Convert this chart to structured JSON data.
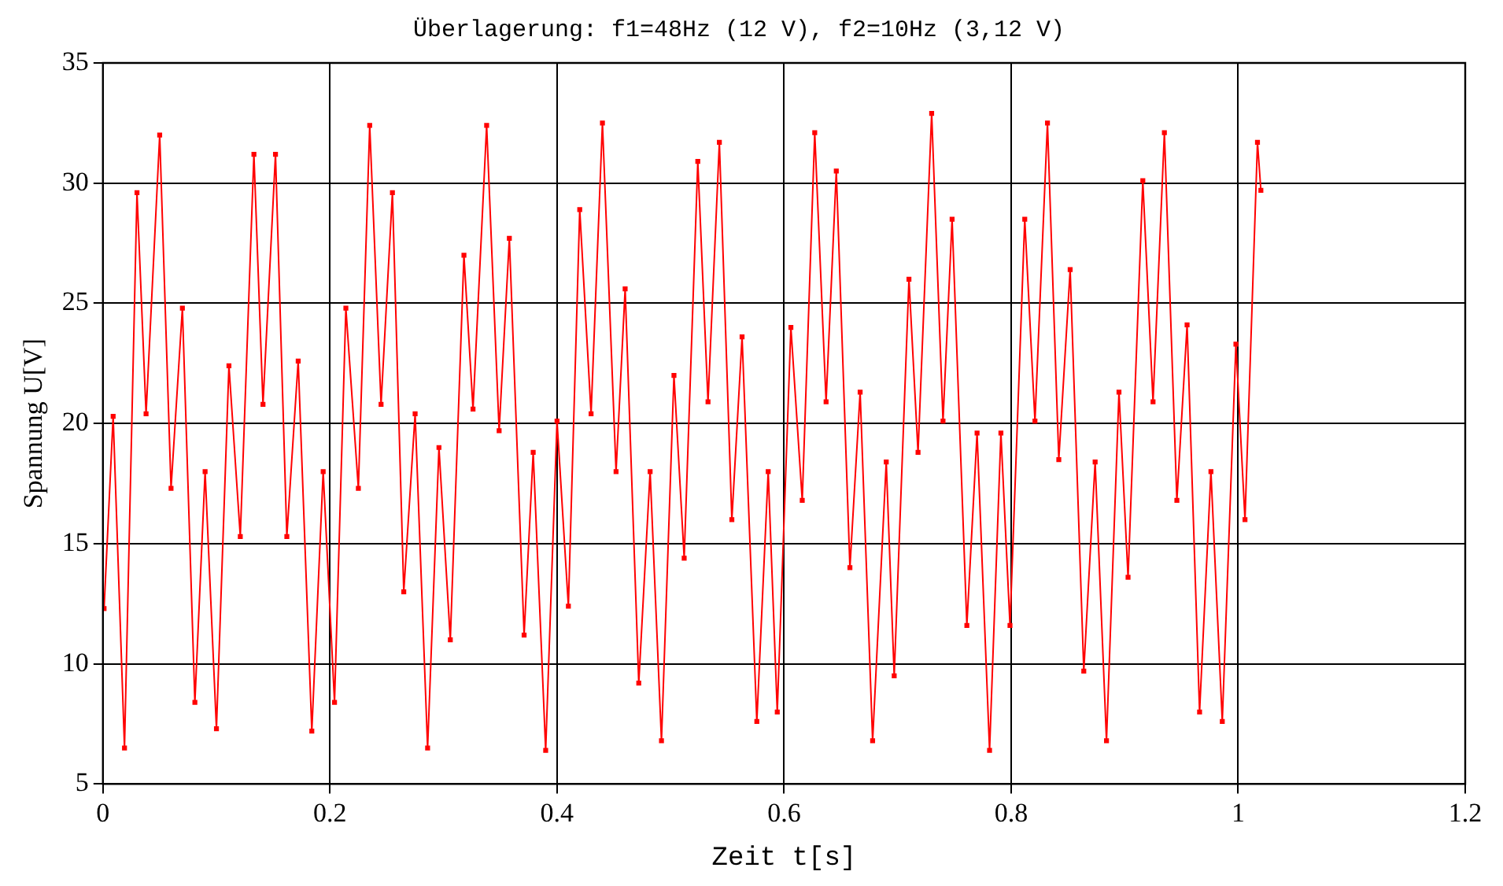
{
  "chart_data": {
    "type": "line",
    "title": "Überlagerung: f1=48Hz (12 V), f2=10Hz (3,12 V)",
    "xlabel": "Zeit t[s]",
    "ylabel": "Spannung U[V]",
    "x": [
      0.001,
      0.009,
      0.019,
      0.03,
      0.038,
      0.05,
      0.06,
      0.07,
      0.081,
      0.09,
      0.1,
      0.111,
      0.121,
      0.133,
      0.141,
      0.152,
      0.162,
      0.172,
      0.184,
      0.194,
      0.204,
      0.214,
      0.225,
      0.235,
      0.245,
      0.255,
      0.265,
      0.275,
      0.286,
      0.296,
      0.306,
      0.318,
      0.326,
      0.338,
      0.349,
      0.358,
      0.371,
      0.379,
      0.39,
      0.4,
      0.41,
      0.42,
      0.43,
      0.44,
      0.452,
      0.46,
      0.472,
      0.482,
      0.492,
      0.503,
      0.512,
      0.524,
      0.533,
      0.543,
      0.554,
      0.563,
      0.576,
      0.586,
      0.594,
      0.606,
      0.616,
      0.627,
      0.637,
      0.646,
      0.658,
      0.667,
      0.678,
      0.69,
      0.697,
      0.71,
      0.718,
      0.73,
      0.74,
      0.748,
      0.761,
      0.77,
      0.781,
      0.791,
      0.799,
      0.812,
      0.821,
      0.832,
      0.842,
      0.852,
      0.864,
      0.874,
      0.884,
      0.895,
      0.903,
      0.916,
      0.925,
      0.935,
      0.946,
      0.955,
      0.966,
      0.976,
      0.986,
      0.998,
      1.006,
      1.017,
      1.02
    ],
    "series": [
      {
        "color": "#ff0000",
        "values": [
          12.3,
          20.3,
          6.5,
          29.6,
          20.4,
          32.0,
          17.3,
          24.8,
          8.4,
          18.0,
          7.3,
          22.4,
          15.3,
          31.2,
          20.8,
          31.2,
          15.3,
          22.6,
          7.2,
          18.0,
          8.4,
          24.8,
          17.3,
          32.4,
          20.8,
          29.6,
          13.0,
          20.4,
          6.5,
          19.0,
          11.0,
          27.0,
          20.6,
          32.4,
          19.7,
          27.7,
          11.2,
          18.8,
          6.4,
          20.1,
          12.4,
          28.9,
          20.4,
          32.5,
          18.0,
          25.6,
          9.2,
          18.0,
          6.8,
          22.0,
          14.4,
          30.9,
          20.9,
          31.7,
          16.0,
          23.6,
          7.6,
          18.0,
          8.0,
          24.0,
          16.8,
          32.1,
          20.9,
          30.5,
          14.0,
          21.3,
          6.8,
          18.4,
          9.5,
          26.0,
          18.8,
          32.9,
          20.1,
          28.5,
          11.6,
          19.6,
          6.4,
          19.6,
          11.6,
          28.5,
          20.1,
          32.5,
          18.5,
          26.4,
          9.7,
          18.4,
          6.8,
          21.3,
          13.6,
          30.1,
          20.9,
          32.1,
          16.8,
          24.1,
          8.0,
          18.0,
          7.6,
          23.3,
          16.0,
          31.7,
          29.7
        ]
      }
    ],
    "xlim": [
      0,
      1.2
    ],
    "xticks": [
      0,
      0.2,
      0.4,
      0.6,
      0.8,
      1,
      1.2
    ],
    "ylim": [
      5,
      35
    ],
    "yticks": [
      5,
      10,
      15,
      20,
      25,
      30,
      35
    ],
    "grid": true,
    "legend": false,
    "marker": "square",
    "line_style": "solid"
  }
}
